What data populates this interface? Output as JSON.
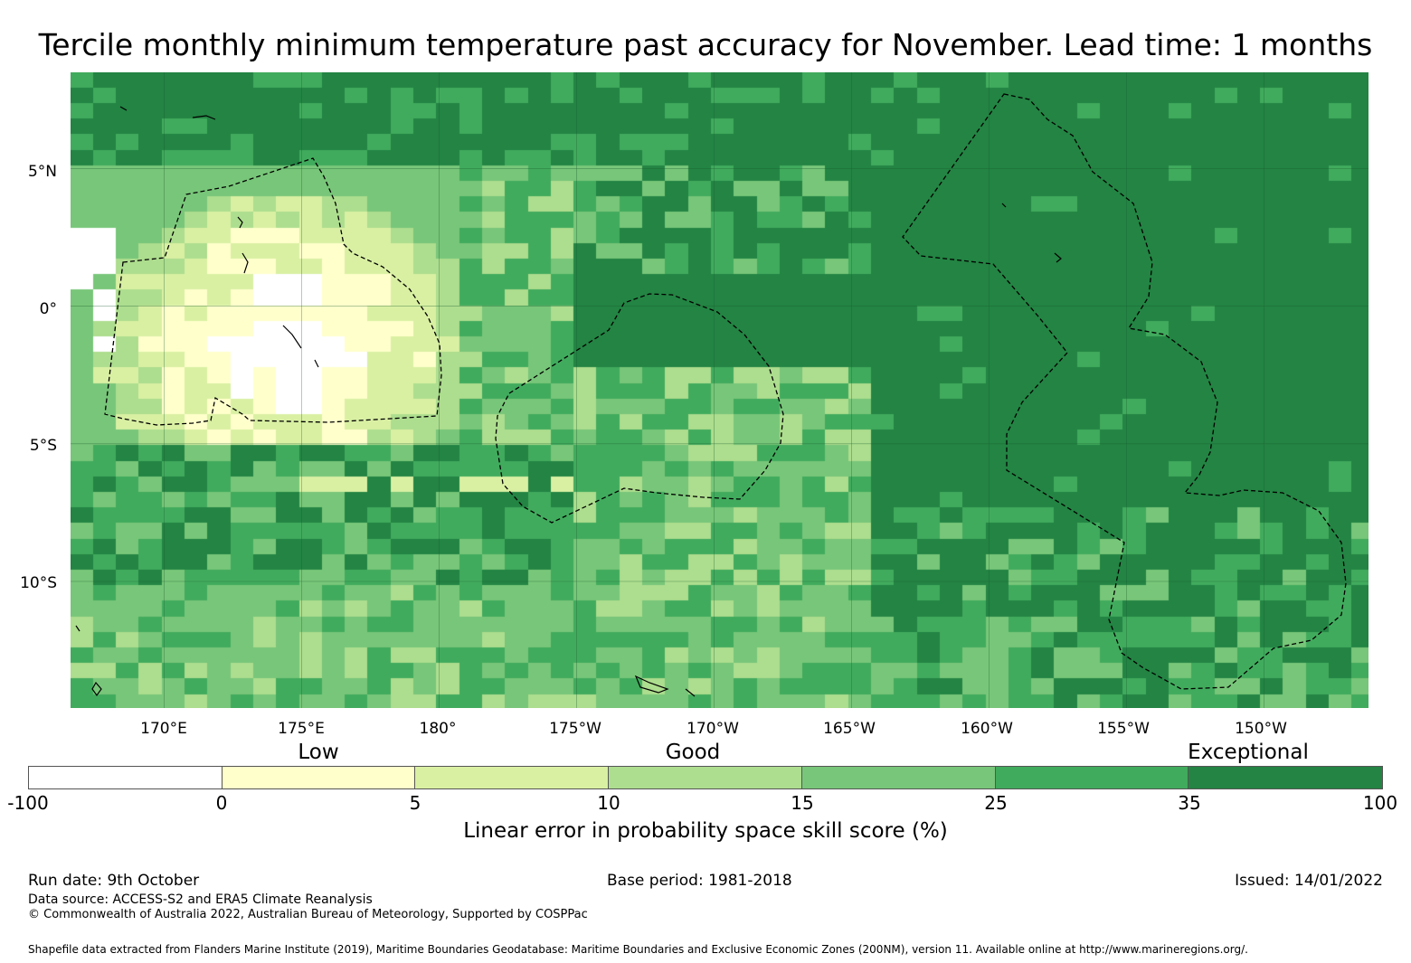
{
  "title": "Tercile monthly minimum temperature past accuracy for November. Lead time: 1 months",
  "map": {
    "lat_labels": [
      "5°N",
      "0°",
      "5°S",
      "10°S"
    ],
    "lon_labels": [
      "170°E",
      "175°E",
      "180°",
      "175°W",
      "170°W",
      "165°W",
      "160°W",
      "155°W",
      "150°W"
    ],
    "lon_range": [
      166.6,
      213.8
    ],
    "lat_range": [
      -14.6,
      8.5
    ],
    "grid_lats": [
      5,
      0,
      -5,
      -10
    ],
    "grid_lons": [
      170,
      175,
      180,
      185,
      190,
      195,
      200,
      205,
      210
    ]
  },
  "legend": {
    "categories": [
      "Low",
      "Good",
      "Exceptional"
    ],
    "ticks": [
      "-100",
      "0",
      "5",
      "10",
      "15",
      "25",
      "35",
      "100"
    ],
    "colors": [
      "#ffffff",
      "#ffffcc",
      "#d9f0a3",
      "#addd8e",
      "#78c679",
      "#41ab5d",
      "#238443"
    ],
    "label": "Linear error in probability space skill score (%)"
  },
  "footer": {
    "run_date": "Run date: 9th October",
    "base_period": "Base period: 1981-2018",
    "issued": "Issued: 14/01/2022",
    "data_source": "Data source: ACCESS-S2 and ERA5 Climate Reanalysis",
    "copyright": "© Commonwealth of Australia 2022, Australian Bureau of Meteorology, Supported by COSPPac",
    "shapefile": "Shapefile data extracted from Flanders Marine Institute (2019), Maritime Boundaries Geodatabase: Maritime Boundaries and Exclusive Economic Zones (200NM), version 11. Available online at http://www.marineregions.org/."
  }
}
